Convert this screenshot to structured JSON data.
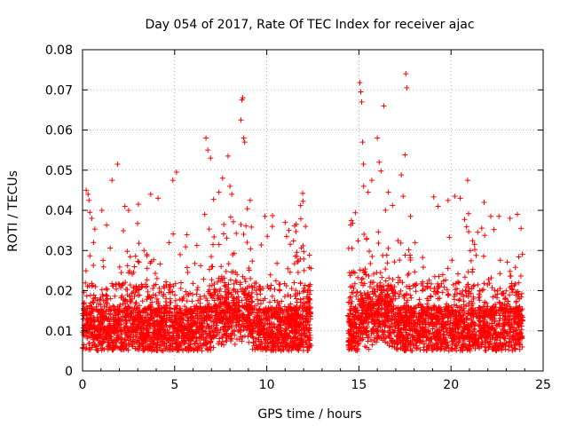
{
  "chart_data": {
    "type": "scatter",
    "title": "Day 054 of 2017, Rate Of TEC Index for receiver ajac",
    "xlabel": "GPS time / hours",
    "ylabel": "ROTI / TECUs",
    "xlim": [
      0,
      25
    ],
    "ylim": [
      0,
      0.08
    ],
    "x_ticks": [
      "0",
      "5",
      "10",
      "15",
      "20",
      "25"
    ],
    "x_tick_values": [
      0,
      5,
      10,
      15,
      20,
      25
    ],
    "y_ticks": [
      "0",
      "0.01",
      "0.02",
      "0.03",
      "0.04",
      "0.05",
      "0.06",
      "0.07",
      "0.08"
    ],
    "y_tick_values": [
      0,
      0.01,
      0.02,
      0.03,
      0.04,
      0.05,
      0.06,
      0.07,
      0.08
    ],
    "grid": true,
    "marker": "plus",
    "marker_color": "#ff0000",
    "data_gap_hours": [
      12.4,
      14.4
    ],
    "series": [
      {
        "name": "ROTI",
        "points": [
          [
            0.2,
            0.045
          ],
          [
            0.3,
            0.044
          ],
          [
            0.35,
            0.0425
          ],
          [
            0.4,
            0.0395
          ],
          [
            0.5,
            0.038
          ],
          [
            0.6,
            0.032
          ],
          [
            1.6,
            0.0475
          ],
          [
            1.9,
            0.0515
          ],
          [
            2.5,
            0.04
          ],
          [
            3.7,
            0.044
          ],
          [
            4.1,
            0.043
          ],
          [
            4.9,
            0.0475
          ],
          [
            5.1,
            0.0495
          ],
          [
            6.7,
            0.058
          ],
          [
            6.8,
            0.055
          ],
          [
            6.95,
            0.053
          ],
          [
            7.4,
            0.0445
          ],
          [
            7.6,
            0.048
          ],
          [
            7.9,
            0.0535
          ],
          [
            8.0,
            0.046
          ],
          [
            8.1,
            0.044
          ],
          [
            8.6,
            0.0625
          ],
          [
            8.65,
            0.0675
          ],
          [
            8.7,
            0.068
          ],
          [
            8.75,
            0.058
          ],
          [
            8.8,
            0.057
          ],
          [
            9.1,
            0.0425
          ],
          [
            9.9,
            0.0385
          ],
          [
            10.3,
            0.036
          ],
          [
            11.0,
            0.037
          ],
          [
            11.2,
            0.035
          ],
          [
            12.1,
            0.036
          ],
          [
            15.05,
            0.0718
          ],
          [
            15.1,
            0.0695
          ],
          [
            15.15,
            0.067
          ],
          [
            15.2,
            0.057
          ],
          [
            15.25,
            0.0515
          ],
          [
            15.5,
            0.0445
          ],
          [
            15.7,
            0.0475
          ],
          [
            16.0,
            0.058
          ],
          [
            16.1,
            0.052
          ],
          [
            16.2,
            0.0498
          ],
          [
            16.35,
            0.066
          ],
          [
            16.6,
            0.0445
          ],
          [
            17.3,
            0.0488
          ],
          [
            17.4,
            0.0435
          ],
          [
            17.5,
            0.0538
          ],
          [
            17.55,
            0.074
          ],
          [
            17.6,
            0.0705
          ],
          [
            17.8,
            0.0385
          ],
          [
            19.3,
            0.041
          ],
          [
            20.2,
            0.0435
          ],
          [
            20.5,
            0.043
          ],
          [
            20.9,
            0.0475
          ],
          [
            21.8,
            0.042
          ],
          [
            22.6,
            0.0385
          ],
          [
            23.2,
            0.038
          ],
          [
            23.6,
            0.039
          ],
          [
            23.8,
            0.0355
          ]
        ]
      }
    ]
  }
}
